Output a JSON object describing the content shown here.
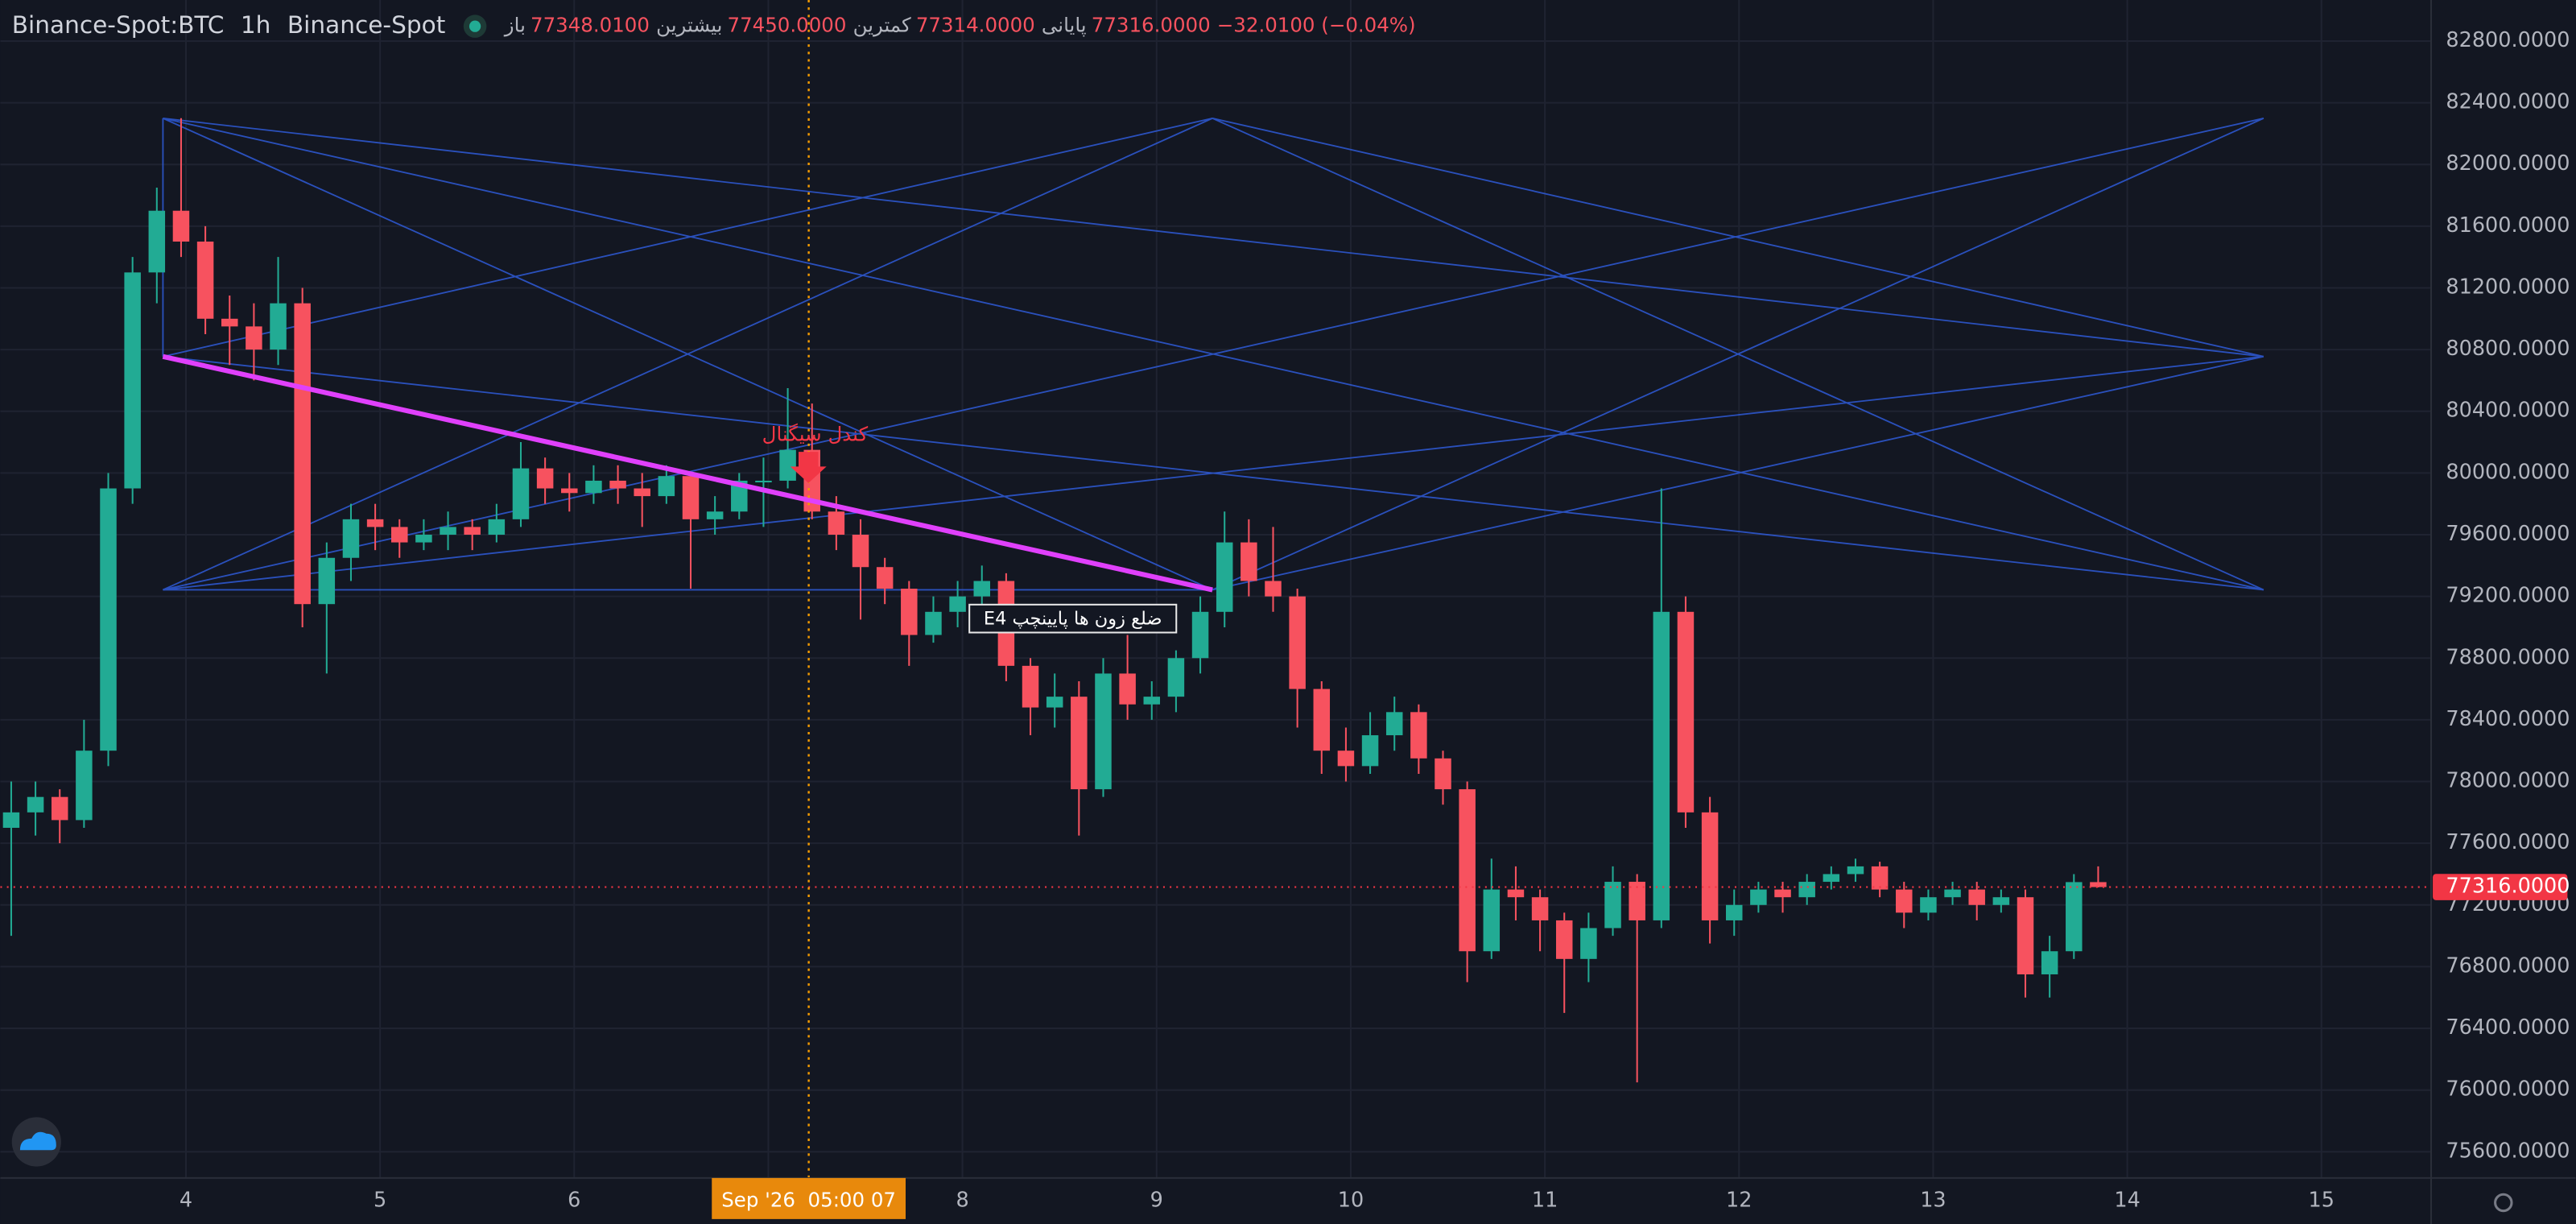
{
  "header": {
    "symbol": "Binance-Spot:BTC",
    "interval": "1h",
    "exchange": "Binance-Spot",
    "ohlc": [
      {
        "label": "باز",
        "value": "77348.0100"
      },
      {
        "label": "بیشترین",
        "value": "77450.0000"
      },
      {
        "label": "کمترین",
        "value": "77314.0000"
      },
      {
        "label": "پایانی",
        "value": "77316.0000"
      }
    ],
    "change": "−32.0100 (−0.04%)"
  },
  "chart_data": {
    "type": "candlestick",
    "up_color": "#22ab94",
    "down_color": "#f7525f",
    "grid": true,
    "xlim": [
      3.044,
      15.565
    ],
    "xticks": [
      4,
      5,
      6,
      7,
      8,
      9,
      10,
      11,
      12,
      13,
      14,
      15
    ],
    "ylim": [
      75430,
      83066
    ],
    "yticks": [
      {
        "value": 75600,
        "label": "75600.0000"
      },
      {
        "value": 76000,
        "label": "76000.0000"
      },
      {
        "value": 76400,
        "label": "76400.0000"
      },
      {
        "value": 76800,
        "label": "76800.0000"
      },
      {
        "value": 77200,
        "label": "77200.0000"
      },
      {
        "value": 77600,
        "label": "77600.0000"
      },
      {
        "value": 78000,
        "label": "78000.0000"
      },
      {
        "value": 78400,
        "label": "78400.0000"
      },
      {
        "value": 78800,
        "label": "78800.0000"
      },
      {
        "value": 79200,
        "label": "79200.0000"
      },
      {
        "value": 79600,
        "label": "79600.0000"
      },
      {
        "value": 80000,
        "label": "80000.0000"
      },
      {
        "value": 80400,
        "label": "80400.0000"
      },
      {
        "value": 80800,
        "label": "80800.0000"
      },
      {
        "value": 81200,
        "label": "81200.0000"
      },
      {
        "value": 81600,
        "label": "81600.0000"
      },
      {
        "value": 82000,
        "label": "82000.0000"
      },
      {
        "value": 82400,
        "label": "82400.0000"
      },
      {
        "value": 82800,
        "label": "82800.0000"
      }
    ],
    "x": [
      3.1,
      3.225,
      3.35,
      3.475,
      3.6,
      3.725,
      3.85,
      3.975,
      4.1,
      4.225,
      4.35,
      4.475,
      4.6,
      4.725,
      4.85,
      4.975,
      5.1,
      5.225,
      5.35,
      5.475,
      5.6,
      5.725,
      5.85,
      5.975,
      6.1,
      6.225,
      6.35,
      6.475,
      6.6,
      6.725,
      6.85,
      6.975,
      7.1,
      7.225,
      7.35,
      7.475,
      7.6,
      7.725,
      7.85,
      7.975,
      8.1,
      8.225,
      8.35,
      8.475,
      8.6,
      8.725,
      8.85,
      8.975,
      9.1,
      9.225,
      9.35,
      9.475,
      9.6,
      9.725,
      9.85,
      9.975,
      10.1,
      10.225,
      10.35,
      10.475,
      10.6,
      10.725,
      10.85,
      10.975,
      11.1,
      11.225,
      11.35,
      11.475,
      11.6,
      11.725,
      11.85,
      11.975,
      12.1,
      12.225,
      12.35,
      12.475,
      12.6,
      12.725,
      12.85,
      12.975,
      13.1,
      13.225,
      13.35,
      13.475,
      13.6,
      13.725,
      13.85
    ],
    "ohlc": [
      [
        77700,
        78000,
        77000,
        77800
      ],
      [
        77800,
        78000,
        77650,
        77900
      ],
      [
        77900,
        77950,
        77600,
        77750
      ],
      [
        77750,
        78400,
        77700,
        78200
      ],
      [
        78200,
        80000,
        78100,
        79900
      ],
      [
        79900,
        81400,
        79800,
        81300
      ],
      [
        81300,
        81850,
        81100,
        81700
      ],
      [
        81700,
        82300,
        81400,
        81500
      ],
      [
        81500,
        81600,
        80900,
        81000
      ],
      [
        81000,
        81150,
        80700,
        80950
      ],
      [
        80950,
        81100,
        80600,
        80800
      ],
      [
        80800,
        81400,
        80700,
        81100
      ],
      [
        81100,
        81200,
        79000,
        79150
      ],
      [
        79150,
        79550,
        78700,
        79450
      ],
      [
        79450,
        79800,
        79300,
        79700
      ],
      [
        79700,
        79800,
        79500,
        79650
      ],
      [
        79650,
        79700,
        79450,
        79550
      ],
      [
        79550,
        79700,
        79500,
        79600
      ],
      [
        79600,
        79750,
        79500,
        79650
      ],
      [
        79650,
        79700,
        79500,
        79600
      ],
      [
        79600,
        79800,
        79550,
        79700
      ],
      [
        79700,
        80200,
        79650,
        80030
      ],
      [
        80030,
        80100,
        79800,
        79900
      ],
      [
        79900,
        80000,
        79750,
        79870
      ],
      [
        79870,
        80050,
        79800,
        79950
      ],
      [
        79950,
        80050,
        79800,
        79900
      ],
      [
        79900,
        80000,
        79650,
        79850
      ],
      [
        79850,
        80050,
        79800,
        79980
      ],
      [
        79980,
        80000,
        79250,
        79700
      ],
      [
        79700,
        79850,
        79600,
        79750
      ],
      [
        79750,
        80000,
        79700,
        79950
      ],
      [
        79950,
        80100,
        79650,
        79950
      ],
      [
        79950,
        80550,
        79900,
        80150
      ],
      [
        80150,
        80450,
        79700,
        79750
      ],
      [
        79750,
        79850,
        79500,
        79600
      ],
      [
        79600,
        79700,
        79050,
        79390
      ],
      [
        79390,
        79450,
        79150,
        79250
      ],
      [
        79250,
        79300,
        78750,
        78950
      ],
      [
        78950,
        79200,
        78900,
        79100
      ],
      [
        79100,
        79300,
        79000,
        79200
      ],
      [
        79200,
        79400,
        79100,
        79300
      ],
      [
        79300,
        79350,
        78650,
        78750
      ],
      [
        78750,
        78800,
        78300,
        78480
      ],
      [
        78480,
        78700,
        78350,
        78550
      ],
      [
        78550,
        78650,
        77650,
        77950
      ],
      [
        77950,
        78800,
        77900,
        78700
      ],
      [
        78700,
        78950,
        78400,
        78500
      ],
      [
        78500,
        78650,
        78400,
        78550
      ],
      [
        78550,
        78850,
        78450,
        78800
      ],
      [
        78800,
        79200,
        78700,
        79100
      ],
      [
        79100,
        79750,
        79000,
        79550
      ],
      [
        79550,
        79700,
        79200,
        79300
      ],
      [
        79300,
        79650,
        79100,
        79200
      ],
      [
        79200,
        79250,
        78350,
        78600
      ],
      [
        78600,
        78650,
        78050,
        78200
      ],
      [
        78200,
        78350,
        78000,
        78100
      ],
      [
        78100,
        78450,
        78050,
        78300
      ],
      [
        78300,
        78550,
        78200,
        78450
      ],
      [
        78450,
        78500,
        78050,
        78150
      ],
      [
        78150,
        78200,
        77850,
        77950
      ],
      [
        77950,
        78000,
        76700,
        76900
      ],
      [
        76900,
        77500,
        76850,
        77300
      ],
      [
        77300,
        77450,
        77100,
        77250
      ],
      [
        77250,
        77300,
        76900,
        77100
      ],
      [
        77100,
        77150,
        76500,
        76850
      ],
      [
        76850,
        77150,
        76700,
        77050
      ],
      [
        77050,
        77450,
        77000,
        77350
      ],
      [
        77350,
        77400,
        76050,
        77100
      ],
      [
        77100,
        79900,
        77050,
        79100
      ],
      [
        79100,
        79200,
        77700,
        77800
      ],
      [
        77800,
        77900,
        76950,
        77100
      ],
      [
        77100,
        77300,
        77000,
        77200
      ],
      [
        77200,
        77350,
        77150,
        77300
      ],
      [
        77300,
        77350,
        77150,
        77250
      ],
      [
        77250,
        77400,
        77200,
        77350
      ],
      [
        77350,
        77450,
        77300,
        77400
      ],
      [
        77400,
        77500,
        77350,
        77450
      ],
      [
        77450,
        77480,
        77250,
        77300
      ],
      [
        77300,
        77350,
        77050,
        77150
      ],
      [
        77150,
        77300,
        77100,
        77250
      ],
      [
        77250,
        77350,
        77200,
        77300
      ],
      [
        77300,
        77350,
        77100,
        77200
      ],
      [
        77200,
        77300,
        77150,
        77250
      ],
      [
        77250,
        77300,
        76600,
        76750
      ],
      [
        76750,
        77000,
        76600,
        76900
      ],
      [
        76900,
        77400,
        76850,
        77348.01
      ],
      [
        77348.01,
        77450,
        77314,
        77316
      ]
    ],
    "price_line": {
      "value": 77316,
      "label": "77316.0000"
    },
    "crosshair": {
      "x": 7.208,
      "label": "Sep '26  05:00 07"
    },
    "annotations": [
      {
        "text": "کندل سیگنال"
      },
      {
        "text": "E4 ضلع زون ها پایینچپ"
      }
    ]
  }
}
